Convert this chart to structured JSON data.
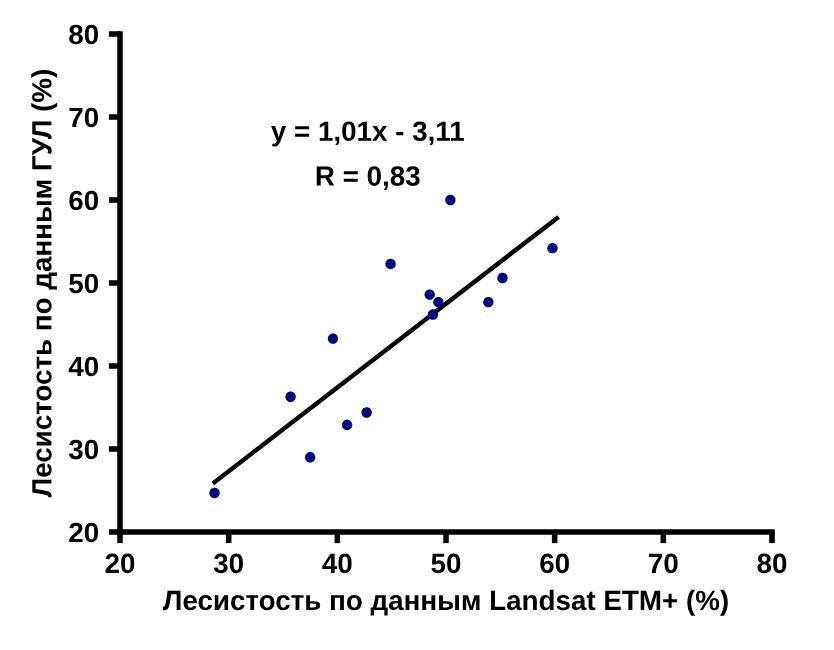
{
  "chart_data": {
    "type": "scatter",
    "xlabel": "Лесистость по данным Landsat ETM+ (%)",
    "ylabel": "Лесистость по данным ГУЛ (%)",
    "annotations": [
      "y = 1,01x - 3,11",
      "R = 0,83"
    ],
    "xlim": [
      20,
      80
    ],
    "xticks": [
      20,
      30,
      40,
      50,
      60,
      70,
      80
    ],
    "ylim": [
      20,
      80
    ],
    "yticks": [
      20,
      30,
      40,
      50,
      60,
      70,
      80
    ],
    "grid": false,
    "legend": false,
    "marker": "circle",
    "series": [
      {
        "type": "scatter",
        "color": "#000080",
        "x": [
          28.7,
          35.7,
          37.5,
          39.6,
          40.9,
          42.7,
          44.9,
          48.5,
          49.3,
          48.8,
          50.4,
          53.9,
          55.2,
          59.8
        ],
        "values": [
          24.7,
          36.3,
          29.0,
          43.3,
          32.9,
          34.4,
          52.3,
          48.6,
          47.7,
          46.2,
          60.0,
          47.7,
          50.6,
          54.2
        ]
      },
      {
        "type": "line",
        "color": "#000000",
        "line_style": "solid",
        "marker": "none",
        "x": [
          28.7,
          60.2
        ],
        "values": [
          26.0,
          57.8
        ]
      }
    ]
  }
}
